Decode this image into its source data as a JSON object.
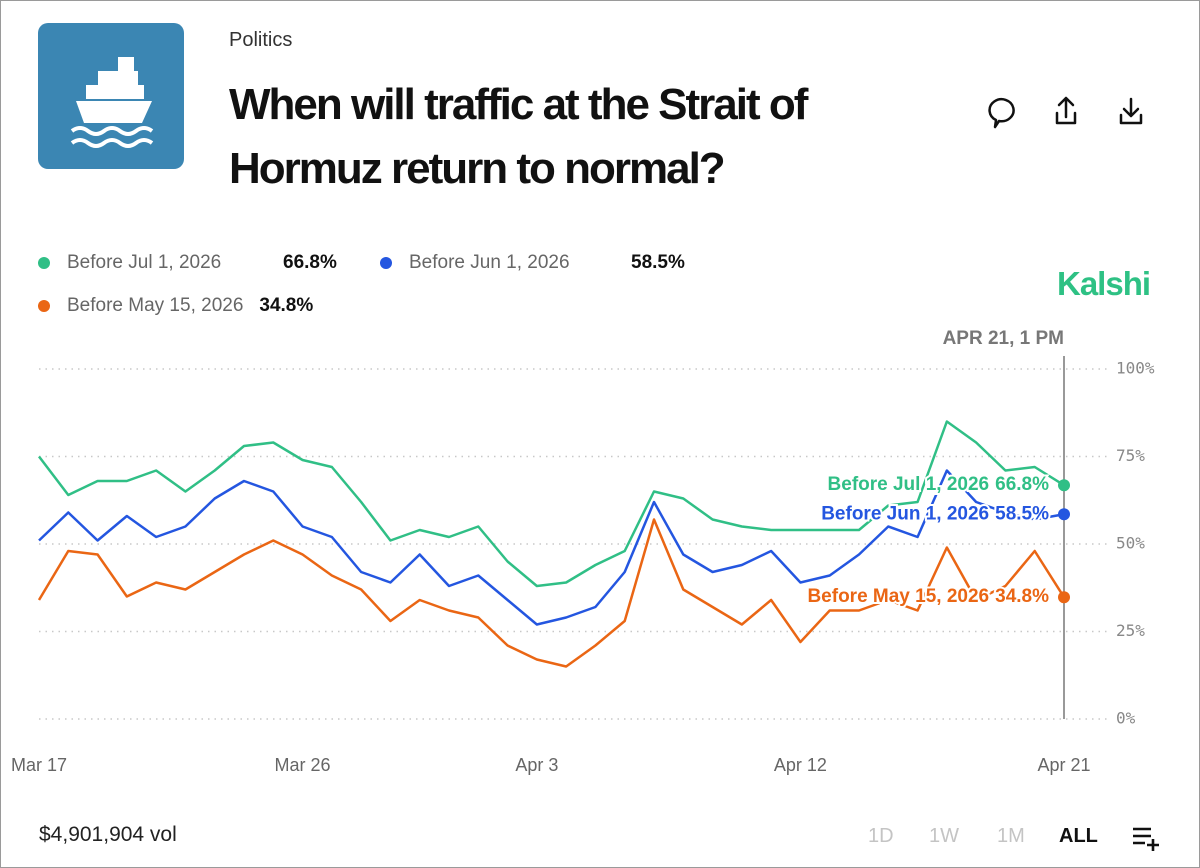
{
  "header": {
    "category": "Politics",
    "title": "When will traffic at the Strait of Hormuz return to normal?"
  },
  "brand": "Kalshi",
  "footer": {
    "volume": "$4,901,904 vol",
    "ranges": [
      "1D",
      "1W",
      "1M",
      "ALL"
    ]
  },
  "chart_data": {
    "type": "line",
    "hover_label": "APR 21, 1 PM",
    "categories": [
      "Mar 17",
      null,
      null,
      null,
      null,
      null,
      null,
      null,
      null,
      "Mar 26",
      null,
      null,
      null,
      null,
      null,
      null,
      null,
      "Apr 3",
      null,
      null,
      null,
      null,
      null,
      null,
      null,
      null,
      "Apr 12",
      null,
      null,
      null,
      null,
      null,
      null,
      null,
      null,
      "Apr 21"
    ],
    "ylim": [
      0,
      100
    ],
    "yticks": [
      {
        "value": 0,
        "label": "0%"
      },
      {
        "value": 25,
        "label": "25%"
      },
      {
        "value": 50,
        "label": "50%"
      },
      {
        "value": 75,
        "label": "75%"
      },
      {
        "value": 100,
        "label": "100%"
      }
    ],
    "grid": true,
    "series": [
      {
        "name": "Before Jul 1, 2026",
        "color": "#30bf86",
        "values": [
          75,
          64,
          68,
          68,
          71,
          65,
          71,
          78,
          79,
          74,
          72,
          62,
          51,
          54,
          52,
          55,
          45,
          38,
          39,
          44,
          48,
          65,
          63,
          57,
          55,
          54,
          54,
          54,
          54,
          61,
          62,
          85,
          79,
          71,
          72,
          66.8
        ],
        "value_labels": [
          null,
          null,
          null,
          null,
          null,
          null,
          null,
          null,
          null,
          null,
          null,
          null,
          null,
          null,
          null,
          null,
          null,
          null,
          null,
          null,
          null,
          null,
          null,
          null,
          null,
          null,
          null,
          null,
          null,
          null,
          null,
          null,
          null,
          null,
          null,
          "66.8%"
        ]
      },
      {
        "name": "Before Jun 1, 2026",
        "color": "#2456e0",
        "values": [
          51,
          59,
          51,
          58,
          52,
          55,
          63,
          68,
          65,
          55,
          52,
          42,
          39,
          47,
          38,
          41,
          34,
          27,
          29,
          32,
          42,
          62,
          47,
          42,
          44,
          48,
          39,
          41,
          47,
          55,
          52,
          71,
          62,
          59,
          57,
          58.5
        ],
        "value_labels": [
          null,
          null,
          null,
          null,
          null,
          null,
          null,
          null,
          null,
          null,
          null,
          null,
          null,
          null,
          null,
          null,
          null,
          null,
          null,
          null,
          null,
          null,
          null,
          null,
          null,
          null,
          null,
          null,
          null,
          null,
          null,
          null,
          null,
          null,
          null,
          "58.5%"
        ]
      },
      {
        "name": "Before May 15, 2026",
        "color": "#ea6614",
        "values": [
          34,
          48,
          47,
          35,
          39,
          37,
          42,
          47,
          51,
          47,
          41,
          37,
          28,
          34,
          31,
          29,
          21,
          17,
          15,
          21,
          28,
          57,
          37,
          32,
          27,
          34,
          22,
          31,
          31,
          34,
          31,
          49,
          34,
          38,
          48,
          34.8
        ],
        "value_labels": [
          null,
          null,
          null,
          null,
          null,
          null,
          null,
          null,
          null,
          null,
          null,
          null,
          null,
          null,
          null,
          null,
          null,
          null,
          null,
          null,
          null,
          null,
          null,
          null,
          null,
          null,
          null,
          null,
          null,
          null,
          null,
          null,
          null,
          null,
          null,
          "34.8%"
        ]
      }
    ]
  }
}
